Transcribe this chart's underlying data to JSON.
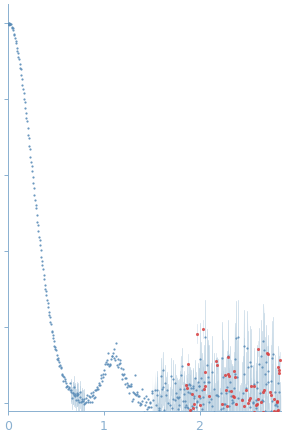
{
  "bg_color": "#ffffff",
  "blue_color": "#5b8db8",
  "red_color": "#d94040",
  "error_band_color": "#b8cfe0",
  "axis_color": "#8ab0d0",
  "tick_color": "#8ab0d0",
  "xlim": [
    0,
    2.85
  ],
  "ylim": [
    -0.02,
    1.05
  ],
  "xticks": [
    0,
    1,
    2
  ],
  "seed": 42
}
